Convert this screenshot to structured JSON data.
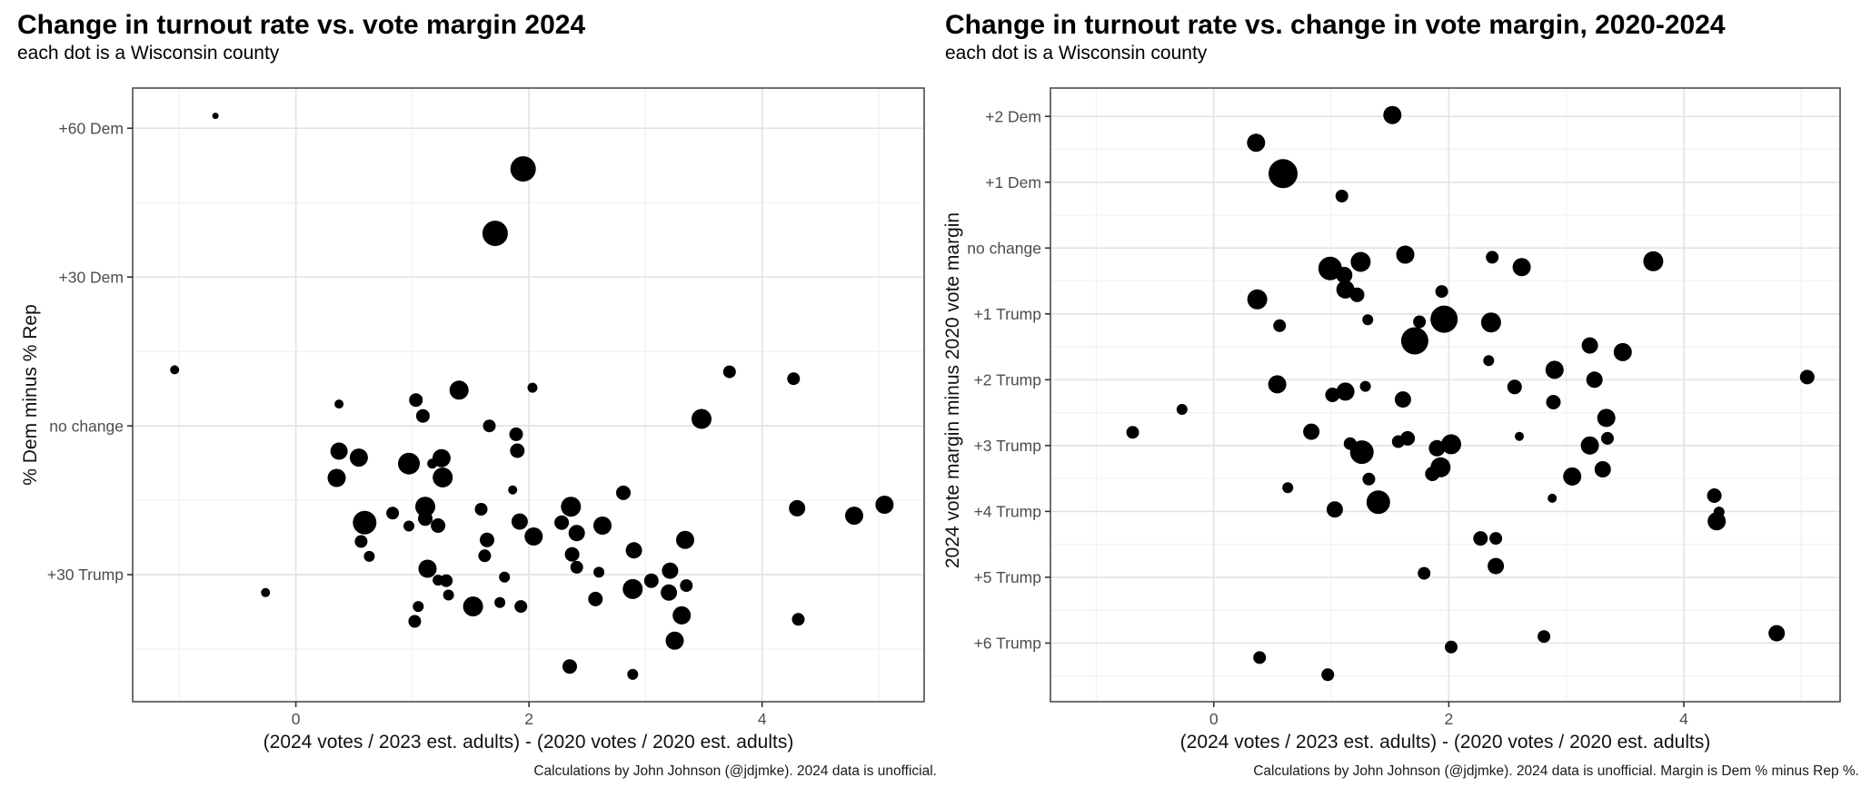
{
  "figure": {
    "background": "#ffffff",
    "dot_color": "#000000",
    "panel_border_color": "#4d4d4d",
    "major_grid_color": "#e4e4e4",
    "minor_grid_color": "#f1f1f1",
    "tick_mark_color": "#333333",
    "tick_label_color": "#4d4d4d"
  },
  "chart_data": [
    {
      "type": "scatter",
      "title": "Change in turnout rate vs. vote margin 2024",
      "subtitle": "each dot is a Wisconsin county",
      "xlabel": "(2024 votes / 2023 est. adults) - (2020 votes / 2020 est. adults)",
      "ylabel": "% Dem minus % Rep",
      "caption": "Calculations by John Johnson (@jdjmke). 2024 data is unofficial.",
      "xlim": [
        -1.4,
        5.39
      ],
      "ylim": [
        -55.6,
        68.1
      ],
      "grid": true,
      "legend": "none",
      "x_ticks": [
        0,
        2,
        4
      ],
      "x_tick_labels": [
        "0",
        "2",
        "4"
      ],
      "x_minor": [
        -1,
        1,
        3,
        5
      ],
      "y_ticks": [
        60,
        30,
        0,
        -30
      ],
      "y_tick_labels": [
        "+60 Dem",
        "+30 Dem",
        "no change",
        "+30 Trump"
      ],
      "y_minor": [
        45,
        15,
        -15,
        -45
      ],
      "point_note": "each point = [x turnout-change, y 2024 margin (Dem minus Rep), marker radius px]",
      "points": [
        [
          -0.69,
          62.5,
          3.5
        ],
        [
          1.95,
          51.8,
          14
        ],
        [
          1.71,
          38.8,
          14
        ],
        [
          -1.04,
          11.3,
          5
        ],
        [
          3.72,
          10.9,
          7
        ],
        [
          4.27,
          9.5,
          7
        ],
        [
          1.4,
          7.2,
          10.5
        ],
        [
          1.03,
          5.2,
          7.5
        ],
        [
          2.03,
          7.7,
          5.5
        ],
        [
          0.37,
          4.4,
          5
        ],
        [
          1.09,
          2.0,
          7.5
        ],
        [
          3.48,
          1.4,
          11
        ],
        [
          1.66,
          0.0,
          7
        ],
        [
          1.89,
          -1.7,
          7.5
        ],
        [
          1.9,
          -5.0,
          8
        ],
        [
          0.37,
          -5.1,
          9.5
        ],
        [
          0.54,
          -6.4,
          10
        ],
        [
          0.97,
          -7.6,
          12
        ],
        [
          1.17,
          -7.6,
          5.5
        ],
        [
          1.25,
          -6.5,
          10
        ],
        [
          1.26,
          -10.4,
          11
        ],
        [
          0.35,
          -10.5,
          10
        ],
        [
          1.86,
          -12.9,
          5
        ],
        [
          2.81,
          -13.5,
          8
        ],
        [
          1.11,
          -16.3,
          11
        ],
        [
          0.83,
          -17.6,
          7
        ],
        [
          2.36,
          -16.3,
          11
        ],
        [
          1.59,
          -16.8,
          7
        ],
        [
          4.3,
          -16.6,
          9
        ],
        [
          5.05,
          -15.9,
          10
        ],
        [
          4.79,
          -18.1,
          10
        ],
        [
          1.11,
          -18.7,
          8
        ],
        [
          0.59,
          -19.5,
          13
        ],
        [
          0.97,
          -20.2,
          6
        ],
        [
          1.22,
          -20.1,
          8
        ],
        [
          1.92,
          -19.3,
          9
        ],
        [
          2.28,
          -19.5,
          8
        ],
        [
          2.41,
          -21.6,
          9
        ],
        [
          2.63,
          -20.1,
          10
        ],
        [
          2.04,
          -22.3,
          10
        ],
        [
          0.56,
          -23.3,
          7
        ],
        [
          1.64,
          -23.0,
          8
        ],
        [
          3.34,
          -23.0,
          10
        ],
        [
          0.63,
          -26.3,
          6
        ],
        [
          1.62,
          -26.2,
          7
        ],
        [
          2.37,
          -25.9,
          8
        ],
        [
          2.9,
          -25.1,
          9
        ],
        [
          1.13,
          -28.8,
          10
        ],
        [
          2.41,
          -28.5,
          7
        ],
        [
          2.6,
          -29.5,
          6
        ],
        [
          3.21,
          -29.2,
          9
        ],
        [
          1.22,
          -31.1,
          6
        ],
        [
          1.29,
          -31.2,
          7
        ],
        [
          1.79,
          -30.5,
          6
        ],
        [
          3.05,
          -31.2,
          8
        ],
        [
          3.35,
          -32.2,
          7
        ],
        [
          -0.26,
          -33.6,
          5
        ],
        [
          1.31,
          -34.1,
          6
        ],
        [
          2.89,
          -32.9,
          11
        ],
        [
          3.2,
          -33.6,
          9
        ],
        [
          1.05,
          -36.4,
          6
        ],
        [
          1.52,
          -36.4,
          11
        ],
        [
          1.75,
          -35.6,
          6
        ],
        [
          1.93,
          -36.4,
          7
        ],
        [
          2.57,
          -34.9,
          8
        ],
        [
          1.02,
          -39.4,
          7
        ],
        [
          3.31,
          -38.2,
          10
        ],
        [
          4.31,
          -39.0,
          7
        ],
        [
          3.25,
          -43.3,
          10
        ],
        [
          2.35,
          -48.5,
          8
        ],
        [
          2.89,
          -50.1,
          6
        ]
      ]
    },
    {
      "type": "scatter",
      "title": "Change in turnout rate vs. change in vote margin, 2020-2024",
      "subtitle": "each dot is a Wisconsin county",
      "xlabel": "(2024 votes / 2023 est. adults) - (2020 votes / 2020 est. adults)",
      "ylabel": "2024 vote margin minus 2020 vote margin",
      "caption": "Calculations by John Johnson (@jdjmke). 2024 data is unofficial. Margin is Dem % minus Rep %.",
      "xlim": [
        -1.39,
        5.33
      ],
      "ylim": [
        -6.89,
        2.43
      ],
      "grid": true,
      "legend": "none",
      "x_ticks": [
        0,
        2,
        4
      ],
      "x_tick_labels": [
        "0",
        "2",
        "4"
      ],
      "x_minor": [
        -1,
        1,
        3,
        5
      ],
      "y_ticks": [
        2,
        1,
        0,
        -1,
        -2,
        -3,
        -4,
        -5,
        -6
      ],
      "y_tick_labels": [
        "+2 Dem",
        "+1 Dem",
        "no change",
        "+1 Trump",
        "+2 Trump",
        "+3 Trump",
        "+4 Trump",
        "+5 Trump",
        "+6 Trump"
      ],
      "y_minor": [
        1.5,
        0.5,
        -0.5,
        -1.5,
        -2.5,
        -3.5,
        -4.5,
        -5.5,
        -6.5
      ],
      "point_note": "each point = [x turnout-change, y margin shift 2020-2024 (Dem minus Rep), marker radius px]",
      "points": [
        [
          1.52,
          2.02,
          10
        ],
        [
          0.36,
          1.6,
          10
        ],
        [
          0.59,
          1.13,
          16
        ],
        [
          1.09,
          0.79,
          7
        ],
        [
          1.63,
          -0.1,
          10
        ],
        [
          2.37,
          -0.14,
          7
        ],
        [
          1.25,
          -0.21,
          11
        ],
        [
          2.62,
          -0.29,
          10
        ],
        [
          3.74,
          -0.2,
          11
        ],
        [
          0.99,
          -0.31,
          13
        ],
        [
          1.11,
          -0.41,
          9
        ],
        [
          1.12,
          -0.63,
          10
        ],
        [
          1.22,
          -0.71,
          8
        ],
        [
          1.94,
          -0.66,
          7
        ],
        [
          0.37,
          -0.78,
          11
        ],
        [
          1.31,
          -1.09,
          6
        ],
        [
          1.96,
          -1.08,
          15
        ],
        [
          1.75,
          -1.12,
          7
        ],
        [
          0.56,
          -1.18,
          7
        ],
        [
          2.36,
          -1.13,
          11
        ],
        [
          1.71,
          -1.41,
          15
        ],
        [
          3.2,
          -1.48,
          9
        ],
        [
          3.48,
          -1.58,
          10
        ],
        [
          2.34,
          -1.71,
          6
        ],
        [
          2.9,
          -1.85,
          10
        ],
        [
          3.24,
          -2.0,
          9
        ],
        [
          5.05,
          -1.96,
          8
        ],
        [
          0.54,
          -2.07,
          10
        ],
        [
          1.12,
          -2.18,
          10
        ],
        [
          1.29,
          -2.1,
          6
        ],
        [
          1.01,
          -2.23,
          8
        ],
        [
          1.61,
          -2.3,
          9
        ],
        [
          2.56,
          -2.11,
          8
        ],
        [
          -0.27,
          -2.45,
          6
        ],
        [
          -0.69,
          -2.8,
          7
        ],
        [
          2.89,
          -2.34,
          8
        ],
        [
          3.34,
          -2.58,
          10
        ],
        [
          0.83,
          -2.79,
          9
        ],
        [
          2.6,
          -2.86,
          5
        ],
        [
          3.35,
          -2.89,
          7
        ],
        [
          1.16,
          -2.97,
          7
        ],
        [
          1.26,
          -3.1,
          13
        ],
        [
          1.57,
          -2.94,
          7
        ],
        [
          1.65,
          -2.89,
          8
        ],
        [
          1.9,
          -3.04,
          9
        ],
        [
          2.02,
          -2.98,
          11
        ],
        [
          3.2,
          -3.0,
          10
        ],
        [
          1.93,
          -3.33,
          11
        ],
        [
          1.86,
          -3.43,
          8
        ],
        [
          1.32,
          -3.51,
          7
        ],
        [
          0.63,
          -3.64,
          6
        ],
        [
          3.31,
          -3.36,
          9
        ],
        [
          3.05,
          -3.47,
          10
        ],
        [
          1.4,
          -3.86,
          13
        ],
        [
          1.03,
          -3.97,
          9
        ],
        [
          2.88,
          -3.8,
          5
        ],
        [
          4.26,
          -3.76,
          8
        ],
        [
          4.3,
          -4.01,
          6
        ],
        [
          4.28,
          -4.15,
          10
        ],
        [
          2.27,
          -4.41,
          8
        ],
        [
          2.4,
          -4.41,
          7
        ],
        [
          2.4,
          -4.83,
          9
        ],
        [
          1.79,
          -4.94,
          7
        ],
        [
          2.02,
          -6.06,
          7
        ],
        [
          0.39,
          -6.22,
          7
        ],
        [
          2.81,
          -5.9,
          7
        ],
        [
          4.79,
          -5.85,
          9
        ],
        [
          0.97,
          -6.48,
          7
        ]
      ]
    }
  ]
}
